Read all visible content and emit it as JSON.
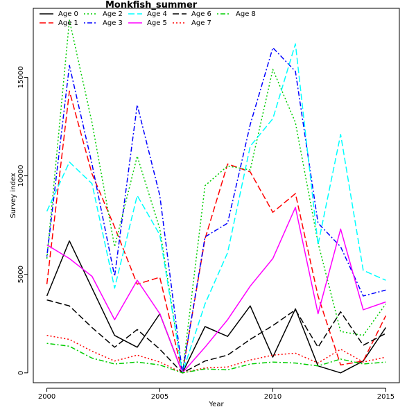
{
  "chart_data": {
    "type": "line",
    "title": "Monkfish_summer",
    "xlabel": "Year",
    "ylabel": "Survey index",
    "xlim": [
      1999.4,
      2015.6
    ],
    "ylim": [
      -500,
      18500
    ],
    "xticks": [
      2000,
      2005,
      2010,
      2015
    ],
    "yticks": [
      0,
      5000,
      10000,
      15000
    ],
    "legend_position": "top-left",
    "grid": false,
    "x": [
      2000,
      2001,
      2002,
      2003,
      2004,
      2005,
      2006,
      2007,
      2008,
      2009,
      2010,
      2011,
      2012,
      2013,
      2014,
      2015
    ],
    "series": [
      {
        "name": "Age 0",
        "color": "#000000",
        "dash": "solid",
        "values": [
          3900,
          6700,
          4300,
          1900,
          1300,
          3000,
          0,
          2350,
          1850,
          3400,
          800,
          3250,
          350,
          0,
          600,
          2300
        ]
      },
      {
        "name": "Age 1",
        "color": "#ff0000",
        "dash": "longdash",
        "values": [
          4500,
          14300,
          10100,
          7400,
          4500,
          4850,
          0,
          6800,
          10600,
          10200,
          8150,
          9100,
          3900,
          400,
          600,
          2900
        ]
      },
      {
        "name": "Age 2",
        "color": "#00cd00",
        "dash": "dotted",
        "values": [
          5800,
          17900,
          12700,
          6400,
          11000,
          7300,
          0,
          9500,
          10500,
          10300,
          15400,
          12700,
          6600,
          2100,
          1900,
          3500
        ]
      },
      {
        "name": "Age 3",
        "color": "#0000ff",
        "dash": "dotdash",
        "values": [
          5900,
          15600,
          10600,
          4900,
          13600,
          9000,
          0,
          6900,
          7600,
          12600,
          16500,
          15300,
          7600,
          6400,
          3900,
          4200
        ]
      },
      {
        "name": "Age 4",
        "color": "#00ffff",
        "dash": "longdash",
        "values": [
          8200,
          10700,
          9600,
          4300,
          9000,
          7000,
          0,
          3500,
          6100,
          11500,
          12900,
          16700,
          6500,
          12100,
          5200,
          4700
        ]
      },
      {
        "name": "Age 5",
        "color": "#ff00ff",
        "dash": "solid",
        "values": [
          6500,
          5800,
          4900,
          2700,
          4700,
          3000,
          0,
          1300,
          2700,
          4400,
          5800,
          8400,
          3000,
          7300,
          3200,
          3600
        ]
      },
      {
        "name": "Age 6",
        "color": "#000000",
        "dash": "longdash",
        "values": [
          3700,
          3400,
          2300,
          1300,
          2200,
          1200,
          0,
          600,
          900,
          1700,
          2400,
          3200,
          1300,
          3100,
          1400,
          2000
        ]
      },
      {
        "name": "Age 7",
        "color": "#ff0000",
        "dash": "dotted",
        "values": [
          1900,
          1700,
          1100,
          600,
          900,
          550,
          0,
          250,
          300,
          650,
          900,
          1000,
          500,
          1200,
          550,
          800
        ]
      },
      {
        "name": "Age 8",
        "color": "#00cd00",
        "dash": "dotdash",
        "values": [
          1500,
          1350,
          750,
          450,
          550,
          400,
          0,
          200,
          150,
          450,
          550,
          500,
          350,
          700,
          450,
          550
        ]
      }
    ]
  }
}
